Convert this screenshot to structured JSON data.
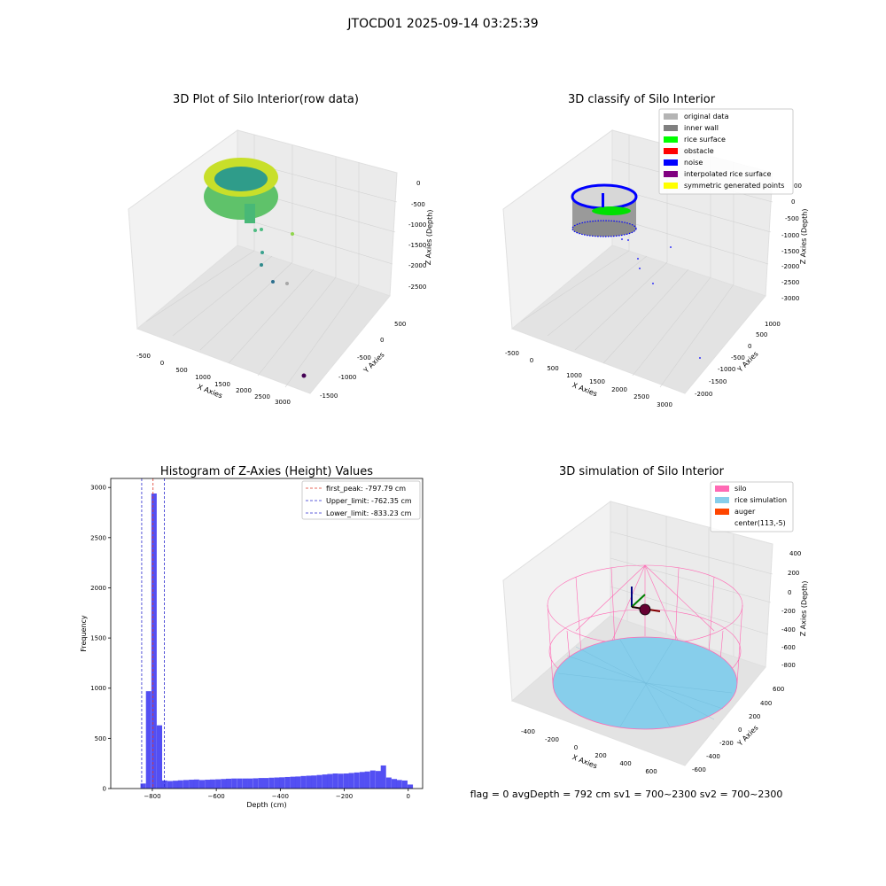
{
  "suptitle": "JTOCD01 2025-09-14 03:25:39",
  "footer": "flag = 0     avgDepth = 792 cm  sv1 = 700~2300  sv2 = 700~2300",
  "colors": {
    "hist_bar": "#4a46f2",
    "first_peak_line": "#e03a2a",
    "limit_line": "#2b2bd0",
    "pane": "#ebebeb",
    "grid": "#d2d2d2"
  },
  "chart_data": [
    {
      "type": "scatter",
      "subtype": "3d",
      "title": "3D Plot of Silo Interior(row data)",
      "xlabel": "X Axies",
      "ylabel": "Y Axies",
      "zlabel": "Z Axies (Depth)",
      "x_ticks": [
        "-500",
        "0",
        "500",
        "1000",
        "1500",
        "2000",
        "2500",
        "3000"
      ],
      "y_ticks": [
        "500",
        "0",
        "-500",
        "-1000",
        "-1500"
      ],
      "z_ticks": [
        "0",
        "-500",
        "-1000",
        "-1500",
        "-2000",
        "-2500"
      ],
      "xlim": [
        -700,
        3200
      ],
      "ylim": [
        -1700,
        700
      ],
      "zlim": [
        -2800,
        100
      ],
      "colormap": "viridis",
      "main_cluster": {
        "x_range": [
          -500,
          700
        ],
        "y_range": [
          -500,
          600
        ],
        "z_range": [
          -1000,
          0
        ]
      },
      "outliers": [
        {
          "x": 1400,
          "y": 0,
          "z": -900
        },
        {
          "x": 1100,
          "y": -100,
          "z": -1000
        },
        {
          "x": 1200,
          "y": -200,
          "z": -1400
        },
        {
          "x": 1300,
          "y": -300,
          "z": -1700
        },
        {
          "x": 1500,
          "y": -500,
          "z": -2200
        },
        {
          "x": 1800,
          "y": -700,
          "z": -2200
        },
        {
          "x": 3000,
          "y": -1400,
          "z": -2600
        }
      ]
    },
    {
      "type": "scatter",
      "subtype": "3d",
      "title": "3D classify of Silo Interior",
      "xlabel": "X Axies",
      "ylabel": "Y Axies",
      "zlabel": "Z Axies (Depth)",
      "x_ticks": [
        "-500",
        "0",
        "500",
        "1000",
        "1500",
        "2000",
        "2500",
        "3000"
      ],
      "y_ticks": [
        "1000",
        "500",
        "0",
        "-500",
        "-1000",
        "-1500",
        "-2000"
      ],
      "z_ticks": [
        "0",
        "-500",
        "-1000",
        "-1500",
        "-2000",
        "-2500",
        "-3000"
      ],
      "z_top_tick_partial": "00",
      "xlim": [
        -700,
        3200
      ],
      "ylim": [
        -2200,
        1200
      ],
      "zlim": [
        -3100,
        100
      ],
      "legend": {
        "location": "top-right",
        "entries": [
          {
            "label": "original data",
            "color": "#b4b4b4"
          },
          {
            "label": "inner wall",
            "color": "#808080"
          },
          {
            "label": "rice surface",
            "color": "#00ff00"
          },
          {
            "label": "obstacle",
            "color": "#ff0000"
          },
          {
            "label": "noise",
            "color": "#0000ff"
          },
          {
            "label": "interpolated rice surface",
            "color": "#800080"
          },
          {
            "label": "symmetric generated points",
            "color": "#ffff00"
          }
        ]
      }
    },
    {
      "type": "bar",
      "subtype": "histogram",
      "title": "Histogram of Z-Axies (Height) Values",
      "xlabel": "Depth (cm)",
      "ylabel": "Frequency",
      "xlim": [
        -930,
        45
      ],
      "ylim": [
        0,
        3090
      ],
      "x_ticks": [
        -800,
        -600,
        -400,
        -200,
        0
      ],
      "y_ticks": [
        0,
        500,
        1000,
        1500,
        2000,
        2500,
        3000
      ],
      "bin_width": 16.7,
      "bins_left_edge": [
        -837,
        -820,
        -803,
        -786,
        -770,
        -753,
        -736,
        -720,
        -703,
        -686,
        -670,
        -653,
        -636,
        -620,
        -603,
        -586,
        -570,
        -553,
        -536,
        -519,
        -503,
        -486,
        -469,
        -453,
        -436,
        -419,
        -403,
        -386,
        -369,
        -353,
        -336,
        -319,
        -303,
        -286,
        -269,
        -253,
        -236,
        -219,
        -202,
        -186,
        -169,
        -152,
        -136,
        -119,
        -102,
        -86,
        -69,
        -52,
        -36,
        -19,
        -2
      ],
      "values": [
        50,
        970,
        2940,
        630,
        80,
        75,
        78,
        82,
        85,
        88,
        90,
        85,
        88,
        90,
        92,
        95,
        98,
        100,
        100,
        100,
        100,
        102,
        105,
        105,
        108,
        110,
        112,
        115,
        118,
        120,
        125,
        128,
        130,
        135,
        140,
        145,
        150,
        148,
        150,
        155,
        160,
        165,
        170,
        180,
        175,
        230,
        110,
        95,
        85,
        80,
        40
      ],
      "reference_lines": [
        {
          "label": "first_peak: -797.79 cm",
          "x": -797.79,
          "color": "#e03a2a"
        },
        {
          "label": "Upper_limit: -762.35 cm",
          "x": -762.35,
          "color": "#2b2bd0"
        },
        {
          "label": "Lower_limit: -833.23 cm",
          "x": -833.23,
          "color": "#2b2bd0"
        }
      ],
      "legend": "top-right"
    },
    {
      "type": "surface",
      "subtype": "3d",
      "title": "3D simulation of Silo Interior",
      "xlabel": "X Axies",
      "ylabel": "Y Axies",
      "zlabel": "Z Axies (Depth)",
      "x_ticks": [
        "-400",
        "-200",
        "0",
        "200",
        "400",
        "600"
      ],
      "y_ticks": [
        "600",
        "400",
        "200",
        "0",
        "-200",
        "-400",
        "-600"
      ],
      "z_ticks": [
        "400",
        "200",
        "0",
        "-200",
        "-400",
        "-600",
        "-800"
      ],
      "xlim": [
        -600,
        750
      ],
      "ylim": [
        -700,
        700
      ],
      "zlim": [
        -950,
        500
      ],
      "legend": {
        "location": "top-right",
        "entries": [
          {
            "label": "silo",
            "color": "#ff69b4"
          },
          {
            "label": "rice simulation",
            "color": "#87ceeb"
          },
          {
            "label": "auger",
            "color": "#ff4500"
          },
          {
            "label": "center(113,-5)",
            "color": ""
          }
        ]
      }
    }
  ]
}
